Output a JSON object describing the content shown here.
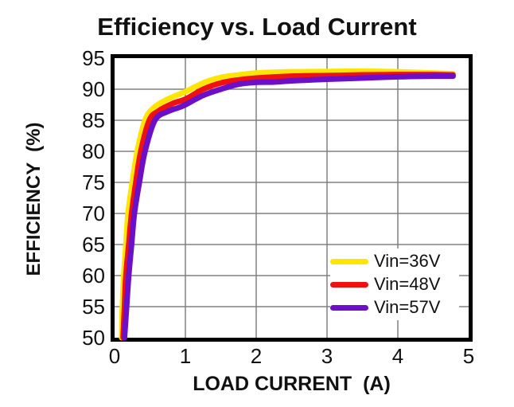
{
  "figure": {
    "title": "Efficiency vs. Load Current",
    "background": "#ffffff"
  },
  "colors": {
    "grid": "#808080",
    "axis_border": "#000000",
    "text": "#111111"
  },
  "chart_data": {
    "type": "line",
    "title": "Efficiency vs. Load Current",
    "xlabel": "LOAD CURRENT  (A)",
    "ylabel": "EFFICIENCY  (%)",
    "xlim": [
      0,
      5
    ],
    "ylim": [
      50,
      95
    ],
    "x_ticks": [
      0,
      1,
      2,
      3,
      4,
      5
    ],
    "y_ticks": [
      50,
      55,
      60,
      65,
      70,
      75,
      80,
      85,
      90,
      95
    ],
    "grid": true,
    "legend_position": "inside-bottom-right",
    "line_width": 7,
    "series": [
      {
        "name": "Vin=36V",
        "color": "#ffe500",
        "points": [
          [
            0.1,
            50
          ],
          [
            0.11,
            55
          ],
          [
            0.13,
            60
          ],
          [
            0.16,
            65
          ],
          [
            0.19,
            70
          ],
          [
            0.25,
            75
          ],
          [
            0.32,
            80
          ],
          [
            0.43,
            85
          ],
          [
            0.55,
            87.0
          ],
          [
            0.75,
            88.4
          ],
          [
            1.0,
            89.6
          ],
          [
            1.25,
            91.0
          ],
          [
            1.5,
            91.9
          ],
          [
            1.75,
            92.3
          ],
          [
            2.0,
            92.6
          ],
          [
            2.5,
            92.8
          ],
          [
            3.0,
            92.85
          ],
          [
            3.5,
            92.9
          ],
          [
            4.0,
            92.8
          ],
          [
            4.5,
            92.6
          ],
          [
            4.78,
            92.5
          ]
        ]
      },
      {
        "name": "Vin=48V",
        "color": "#ee1111",
        "points": [
          [
            0.12,
            50
          ],
          [
            0.14,
            55
          ],
          [
            0.16,
            60
          ],
          [
            0.2,
            65
          ],
          [
            0.24,
            70
          ],
          [
            0.3,
            75
          ],
          [
            0.37,
            80
          ],
          [
            0.49,
            85
          ],
          [
            0.62,
            86.5
          ],
          [
            0.82,
            87.7
          ],
          [
            1.0,
            88.4
          ],
          [
            1.25,
            90.0
          ],
          [
            1.5,
            91.0
          ],
          [
            1.75,
            91.5
          ],
          [
            2.0,
            91.8
          ],
          [
            2.5,
            92.1
          ],
          [
            3.0,
            92.2
          ],
          [
            3.5,
            92.3
          ],
          [
            4.0,
            92.35
          ],
          [
            4.5,
            92.35
          ],
          [
            4.78,
            92.3
          ]
        ]
      },
      {
        "name": "Vin=57V",
        "color": "#6c0fc8",
        "points": [
          [
            0.14,
            50
          ],
          [
            0.17,
            55
          ],
          [
            0.2,
            60
          ],
          [
            0.24,
            65
          ],
          [
            0.28,
            70
          ],
          [
            0.35,
            75
          ],
          [
            0.43,
            80
          ],
          [
            0.57,
            85
          ],
          [
            0.75,
            86.4
          ],
          [
            0.92,
            87.1
          ],
          [
            1.0,
            87.5
          ],
          [
            1.25,
            89.0
          ],
          [
            1.5,
            90.0
          ],
          [
            1.75,
            90.8
          ],
          [
            2.0,
            91.1
          ],
          [
            2.25,
            91.15
          ],
          [
            2.5,
            91.35
          ],
          [
            3.0,
            91.6
          ],
          [
            3.5,
            91.8
          ],
          [
            4.0,
            92.0
          ],
          [
            4.5,
            92.1
          ],
          [
            4.78,
            92.1
          ]
        ]
      }
    ]
  }
}
